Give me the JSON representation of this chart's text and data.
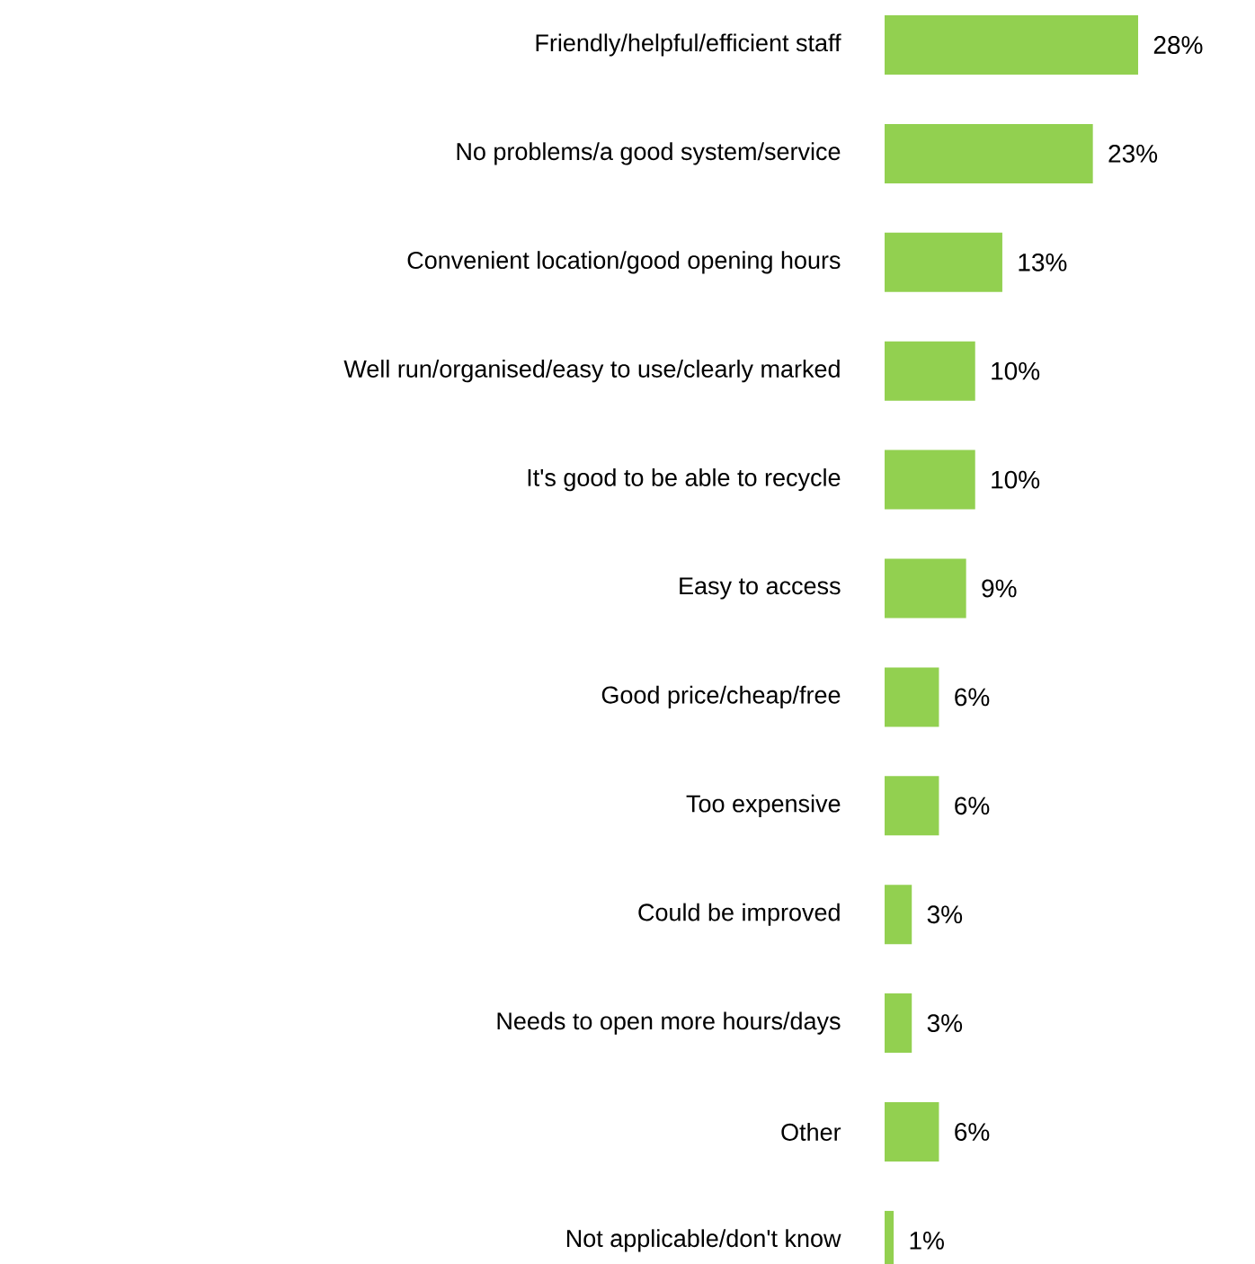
{
  "chart_data": {
    "type": "bar",
    "orientation": "horizontal",
    "categories": [
      "Friendly/helpful/efficient staff",
      "No problems/a good system/service",
      "Convenient location/good opening hours",
      "Well run/organised/easy to use/clearly marked",
      "It's good to be able to recycle",
      "Easy to access",
      "Good price/cheap/free",
      "Too expensive",
      "Could be improved",
      "Needs to open more hours/days",
      "Other",
      "Not applicable/don't know"
    ],
    "values": [
      28,
      23,
      13,
      10,
      10,
      9,
      6,
      6,
      3,
      3,
      6,
      1
    ],
    "value_labels": [
      "28%",
      "23%",
      "13%",
      "10%",
      "10%",
      "9%",
      "6%",
      "6%",
      "3%",
      "3%",
      "6%",
      "1%"
    ],
    "color": "#92d050"
  }
}
